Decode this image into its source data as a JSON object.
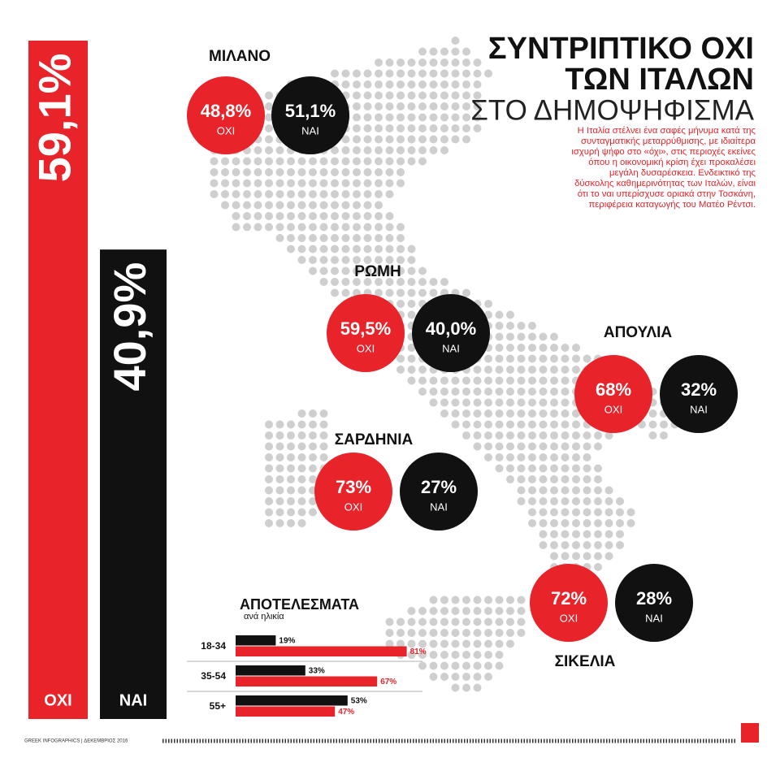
{
  "header": {
    "title_line1": "ΣΥΝΤΡΙΠΤΙΚΟ ΟΧΙ",
    "title_line2": "ΤΩΝ ΙΤΑΛΩΝ",
    "subtitle": "ΣΤΟ ΔΗΜΟΨΗΦΙΣΜΑ",
    "text": "Η Ιταλία στέλνει ένα σαφές μήνυμα κατά της συνταγματικής μεταρρύθμισης, με ιδιαίτερα ισχυρή ψήφο στο «όχι», στις περιοχές εκείνες όπου η οικονομική κρίση έχει προκαλέσει μεγάλη δυσαρέσκεια. Ενδεικτικό της δύσκολης καθημερινότητας των Ιταλών, είναι ότι το ναι υπερίσχυσε οριακά στην Τοσκάνη, περιφέρεια καταγωγής του Ματέο Ρέντσι."
  },
  "labels": {
    "no": "ΟΧΙ",
    "yes": "ΝΑΙ"
  },
  "regions": [
    {
      "name": "ΜΙΛΑΝΟ",
      "no": "48,8%",
      "yes": "51,1%"
    },
    {
      "name": "ΡΩΜΗ",
      "no": "59,5%",
      "yes": "40,0%"
    },
    {
      "name": "ΑΠΟΥΛΙΑ",
      "no": "68%",
      "yes": "32%"
    },
    {
      "name": "ΣΑΡΔΗΝΙΑ",
      "no": "73%",
      "yes": "27%"
    },
    {
      "name": "ΣΙΚΕΛΙΑ",
      "no": "72%",
      "yes": "28%"
    }
  ],
  "chart_data": [
    {
      "type": "bar",
      "orientation": "vertical",
      "categories": [
        "ΟΧΙ",
        "ΝΑΙ"
      ],
      "values": [
        59.1,
        40.9
      ],
      "value_labels": [
        "59,1%",
        "40,9%"
      ],
      "colors": [
        "#e8232a",
        "#111111"
      ]
    },
    {
      "type": "bar",
      "orientation": "horizontal",
      "title": "ΑΠΟΤΕΛΕΣΜΑΤΑ",
      "subtitle": "ανά ηλικία",
      "categories": [
        "18-34",
        "35-54",
        "55+"
      ],
      "series": [
        {
          "color": "#111111",
          "values": [
            19,
            33,
            53
          ],
          "value_labels": [
            "19%",
            "33%",
            "53%"
          ]
        },
        {
          "color": "#e8232a",
          "values": [
            81,
            67,
            47
          ],
          "value_labels": [
            "81%",
            "67%",
            "47%"
          ]
        }
      ]
    }
  ],
  "footer": {
    "credit": "GREEK INFOGRAPHICS | ΔΕΚΕΜΒΡΙΟΣ 2016"
  }
}
